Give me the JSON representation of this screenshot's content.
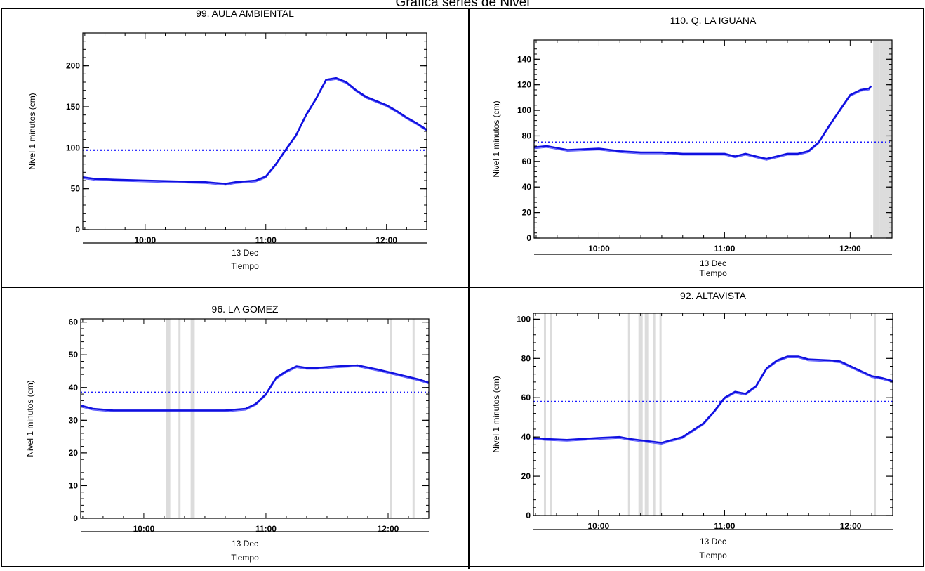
{
  "page": {
    "title": "Grafica series de Nivel"
  },
  "chart_data": [
    {
      "type": "line",
      "title": "99. AULA AMBIENTAL",
      "ylabel": "Nivel 1 minutos (cm)",
      "xlabel": "Tiempo",
      "date_label": "13 Dec",
      "x_domain": [
        "09:29",
        "12:20"
      ],
      "ylim": [
        0,
        240
      ],
      "yticks": [
        0,
        50,
        100,
        150,
        200
      ],
      "xticks": [
        "10:00",
        "11:00",
        "12:00"
      ],
      "threshold": 97,
      "gaps": [],
      "series": [
        {
          "points": [
            [
              "09:29",
              64
            ],
            [
              "09:35",
              62
            ],
            [
              "09:45",
              61
            ],
            [
              "10:00",
              60
            ],
            [
              "10:15",
              59
            ],
            [
              "10:30",
              58
            ],
            [
              "10:35",
              57
            ],
            [
              "10:40",
              56
            ],
            [
              "10:45",
              58
            ],
            [
              "10:55",
              60
            ],
            [
              "11:00",
              65
            ],
            [
              "11:05",
              80
            ],
            [
              "11:10",
              98
            ],
            [
              "11:15",
              115
            ],
            [
              "11:20",
              140
            ],
            [
              "11:25",
              160
            ],
            [
              "11:30",
              183
            ],
            [
              "11:35",
              185
            ],
            [
              "11:40",
              180
            ],
            [
              "11:45",
              170
            ],
            [
              "11:50",
              162
            ],
            [
              "12:00",
              152
            ],
            [
              "12:05",
              145
            ],
            [
              "12:10",
              137
            ],
            [
              "12:15",
              130
            ],
            [
              "12:20",
              122
            ]
          ]
        }
      ]
    },
    {
      "type": "line",
      "title": "110. Q. LA IGUANA",
      "ylabel": "Nivel 1 minutos (cm)",
      "xlabel": "Tiempo",
      "date_label": "13 Dec",
      "x_domain": [
        "09:29",
        "12:20"
      ],
      "ylim": [
        0,
        155
      ],
      "yticks": [
        0,
        20,
        40,
        60,
        80,
        100,
        120,
        140
      ],
      "xticks": [
        "10:00",
        "11:00",
        "12:00"
      ],
      "threshold": 75,
      "gaps": [
        [
          "12:11",
          "12:14"
        ],
        [
          "12:14",
          "12:20"
        ]
      ],
      "series": [
        {
          "points": [
            [
              "09:29",
              71
            ],
            [
              "09:35",
              72
            ],
            [
              "09:45",
              69
            ],
            [
              "10:00",
              70
            ],
            [
              "10:10",
              68
            ],
            [
              "10:20",
              67
            ],
            [
              "10:30",
              67
            ],
            [
              "10:40",
              66
            ],
            [
              "10:50",
              66
            ],
            [
              "11:00",
              66
            ],
            [
              "11:05",
              64
            ],
            [
              "11:10",
              66
            ],
            [
              "11:15",
              64
            ],
            [
              "11:20",
              62
            ],
            [
              "11:25",
              64
            ],
            [
              "11:30",
              66
            ],
            [
              "11:35",
              66
            ],
            [
              "11:40",
              68
            ],
            [
              "11:45",
              75
            ],
            [
              "11:50",
              88
            ],
            [
              "11:55",
              100
            ],
            [
              "12:00",
              112
            ],
            [
              "12:05",
              116
            ],
            [
              "12:09",
              117
            ],
            [
              "12:10",
              119
            ]
          ]
        }
      ]
    },
    {
      "type": "line",
      "title": "96. LA GOMEZ",
      "ylabel": "Nivel 1 minutos (cm)",
      "xlabel": "Tiempo",
      "date_label": "13 Dec",
      "x_domain": [
        "09:29",
        "12:20"
      ],
      "ylim": [
        0,
        61
      ],
      "yticks": [
        0,
        10,
        20,
        30,
        40,
        50,
        60
      ],
      "xticks": [
        "10:00",
        "11:00",
        "12:00"
      ],
      "threshold": 38.5,
      "gaps": [
        [
          "10:11",
          "10:13"
        ],
        [
          "10:17",
          "10:18"
        ],
        [
          "10:23",
          "10:25"
        ],
        [
          "12:01",
          "12:02"
        ],
        [
          "12:12",
          "12:13"
        ]
      ],
      "series": [
        {
          "points": [
            [
              "09:29",
              34.5
            ],
            [
              "09:35",
              33.5
            ],
            [
              "09:45",
              33
            ],
            [
              "10:00",
              33
            ],
            [
              "10:20",
              33
            ],
            [
              "10:40",
              33
            ],
            [
              "10:50",
              33.5
            ],
            [
              "10:55",
              35
            ],
            [
              "11:00",
              38
            ],
            [
              "11:05",
              43
            ],
            [
              "11:10",
              45
            ],
            [
              "11:15",
              46.5
            ],
            [
              "11:20",
              46
            ],
            [
              "11:25",
              46
            ],
            [
              "11:35",
              46.5
            ],
            [
              "11:45",
              46.8
            ],
            [
              "11:55",
              45.5
            ],
            [
              "12:05",
              44
            ],
            [
              "12:15",
              42.5
            ],
            [
              "12:20",
              41.5
            ]
          ]
        }
      ]
    },
    {
      "type": "line",
      "title": "92. ALTAVISTA",
      "ylabel": "Nivel 1 minutos (cm)",
      "xlabel": "Tiempo",
      "date_label": "13 Dec",
      "x_domain": [
        "09:29",
        "12:20"
      ],
      "ylim": [
        0,
        103
      ],
      "yticks": [
        0,
        20,
        40,
        60,
        80,
        100
      ],
      "xticks": [
        "10:00",
        "11:00",
        "12:00"
      ],
      "threshold": 58,
      "gaps": [
        [
          "09:34",
          "09:35"
        ],
        [
          "09:37",
          "09:38"
        ],
        [
          "10:14",
          "10:15"
        ],
        [
          "10:19",
          "10:21"
        ],
        [
          "10:22",
          "10:24"
        ],
        [
          "10:26",
          "10:27"
        ],
        [
          "10:29",
          "10:30"
        ],
        [
          "12:11",
          "12:12"
        ]
      ],
      "series": [
        {
          "points": [
            [
              "09:29",
              39.5
            ],
            [
              "09:35",
              39
            ],
            [
              "09:45",
              38.5
            ],
            [
              "10:00",
              39.5
            ],
            [
              "10:10",
              40
            ],
            [
              "10:15",
              39
            ],
            [
              "10:30",
              37
            ],
            [
              "10:40",
              40
            ],
            [
              "10:50",
              47
            ],
            [
              "10:55",
              53
            ],
            [
              "11:00",
              60
            ],
            [
              "11:05",
              63
            ],
            [
              "11:10",
              62
            ],
            [
              "11:15",
              66
            ],
            [
              "11:20",
              75
            ],
            [
              "11:25",
              79
            ],
            [
              "11:30",
              81
            ],
            [
              "11:35",
              81
            ],
            [
              "11:40",
              79.5
            ],
            [
              "11:50",
              79
            ],
            [
              "11:55",
              78.5
            ],
            [
              "12:00",
              76
            ],
            [
              "12:10",
              71
            ],
            [
              "12:15",
              70
            ],
            [
              "12:20",
              68.5
            ]
          ]
        }
      ]
    }
  ]
}
